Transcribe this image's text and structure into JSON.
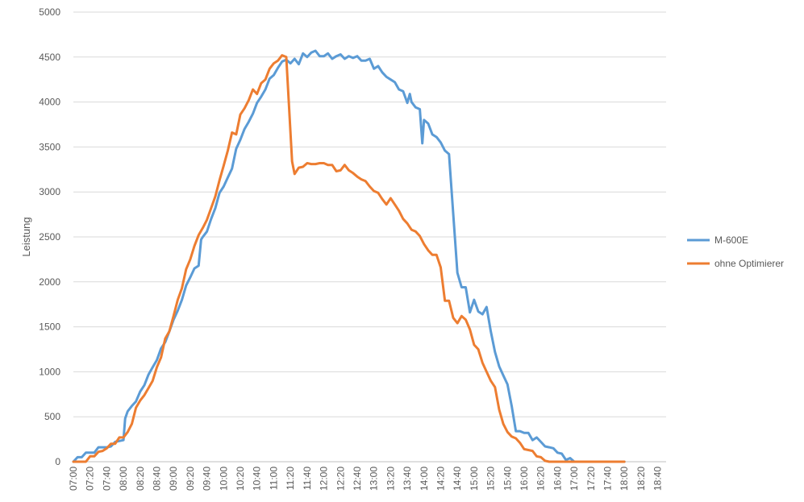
{
  "chart_data": {
    "type": "line",
    "title": "",
    "xlabel": "",
    "ylabel": "Leistung",
    "ylim": [
      0,
      5000
    ],
    "y_ticks": [
      0,
      500,
      1000,
      1500,
      2000,
      2500,
      3000,
      3500,
      4000,
      4500,
      5000
    ],
    "grid": "horizontal",
    "legend_position": "right",
    "x_tick_labels": [
      "07:00",
      "07:20",
      "07:40",
      "08:00",
      "08:20",
      "08:40",
      "09:00",
      "09:20",
      "09:40",
      "10:00",
      "10:20",
      "10:40",
      "11:00",
      "11:20",
      "11:40",
      "12:00",
      "12:20",
      "12:40",
      "13:00",
      "13:20",
      "13:40",
      "14:00",
      "14:20",
      "14:40",
      "15:00",
      "15:20",
      "15:40",
      "16:00",
      "16:20",
      "16:40",
      "17:00",
      "17:20",
      "17:40",
      "18:00",
      "18:20",
      "18:40"
    ],
    "x_start": "07:00",
    "x_end": "18:50",
    "series": [
      {
        "name": "M-600E",
        "color": "#5b9bd5",
        "points": [
          [
            "07:00",
            0
          ],
          [
            "07:05",
            50
          ],
          [
            "07:10",
            50
          ],
          [
            "07:15",
            100
          ],
          [
            "07:20",
            100
          ],
          [
            "07:25",
            100
          ],
          [
            "07:30",
            160
          ],
          [
            "07:40",
            160
          ],
          [
            "07:45",
            170
          ],
          [
            "07:50",
            220
          ],
          [
            "07:55",
            230
          ],
          [
            "08:00",
            240
          ],
          [
            "08:02",
            480
          ],
          [
            "08:05",
            560
          ],
          [
            "08:10",
            620
          ],
          [
            "08:15",
            670
          ],
          [
            "08:20",
            780
          ],
          [
            "08:25",
            850
          ],
          [
            "08:30",
            970
          ],
          [
            "08:35",
            1050
          ],
          [
            "08:40",
            1130
          ],
          [
            "08:45",
            1260
          ],
          [
            "08:50",
            1330
          ],
          [
            "08:55",
            1450
          ],
          [
            "09:00",
            1580
          ],
          [
            "09:05",
            1680
          ],
          [
            "09:10",
            1800
          ],
          [
            "09:15",
            1960
          ],
          [
            "09:20",
            2050
          ],
          [
            "09:25",
            2150
          ],
          [
            "09:30",
            2180
          ],
          [
            "09:33",
            2470
          ],
          [
            "09:35",
            2500
          ],
          [
            "09:40",
            2560
          ],
          [
            "09:45",
            2700
          ],
          [
            "09:50",
            2820
          ],
          [
            "09:55",
            2990
          ],
          [
            "10:00",
            3060
          ],
          [
            "10:05",
            3160
          ],
          [
            "10:10",
            3260
          ],
          [
            "10:15",
            3480
          ],
          [
            "10:20",
            3580
          ],
          [
            "10:25",
            3700
          ],
          [
            "10:30",
            3780
          ],
          [
            "10:35",
            3870
          ],
          [
            "10:40",
            3990
          ],
          [
            "10:45",
            4060
          ],
          [
            "10:50",
            4140
          ],
          [
            "10:55",
            4260
          ],
          [
            "11:00",
            4300
          ],
          [
            "11:05",
            4380
          ],
          [
            "11:10",
            4450
          ],
          [
            "11:15",
            4470
          ],
          [
            "11:20",
            4430
          ],
          [
            "11:25",
            4480
          ],
          [
            "11:30",
            4420
          ],
          [
            "11:35",
            4540
          ],
          [
            "11:40",
            4500
          ],
          [
            "11:45",
            4550
          ],
          [
            "11:50",
            4570
          ],
          [
            "11:55",
            4510
          ],
          [
            "12:00",
            4510
          ],
          [
            "12:05",
            4540
          ],
          [
            "12:10",
            4480
          ],
          [
            "12:15",
            4510
          ],
          [
            "12:20",
            4530
          ],
          [
            "12:25",
            4480
          ],
          [
            "12:30",
            4510
          ],
          [
            "12:35",
            4490
          ],
          [
            "12:40",
            4510
          ],
          [
            "12:45",
            4460
          ],
          [
            "12:50",
            4460
          ],
          [
            "12:55",
            4480
          ],
          [
            "13:00",
            4370
          ],
          [
            "13:05",
            4400
          ],
          [
            "13:10",
            4330
          ],
          [
            "13:15",
            4280
          ],
          [
            "13:20",
            4250
          ],
          [
            "13:25",
            4220
          ],
          [
            "13:30",
            4140
          ],
          [
            "13:35",
            4120
          ],
          [
            "13:40",
            3990
          ],
          [
            "13:43",
            4090
          ],
          [
            "13:45",
            4000
          ],
          [
            "13:50",
            3940
          ],
          [
            "13:55",
            3920
          ],
          [
            "13:58",
            3540
          ],
          [
            "14:00",
            3800
          ],
          [
            "14:05",
            3760
          ],
          [
            "14:10",
            3640
          ],
          [
            "14:15",
            3610
          ],
          [
            "14:20",
            3550
          ],
          [
            "14:25",
            3460
          ],
          [
            "14:30",
            3420
          ],
          [
            "14:35",
            2760
          ],
          [
            "14:40",
            2100
          ],
          [
            "14:45",
            1940
          ],
          [
            "14:50",
            1940
          ],
          [
            "14:55",
            1660
          ],
          [
            "15:00",
            1800
          ],
          [
            "15:05",
            1670
          ],
          [
            "15:10",
            1640
          ],
          [
            "15:15",
            1720
          ],
          [
            "15:20",
            1450
          ],
          [
            "15:25",
            1220
          ],
          [
            "15:30",
            1060
          ],
          [
            "15:35",
            960
          ],
          [
            "15:40",
            860
          ],
          [
            "15:45",
            620
          ],
          [
            "15:50",
            340
          ],
          [
            "15:55",
            340
          ],
          [
            "16:00",
            320
          ],
          [
            "16:05",
            320
          ],
          [
            "16:10",
            240
          ],
          [
            "16:15",
            270
          ],
          [
            "16:20",
            220
          ],
          [
            "16:25",
            170
          ],
          [
            "16:30",
            160
          ],
          [
            "16:35",
            150
          ],
          [
            "16:40",
            100
          ],
          [
            "16:45",
            90
          ],
          [
            "16:50",
            20
          ],
          [
            "16:55",
            40
          ],
          [
            "17:00",
            0
          ],
          [
            "17:20",
            0
          ],
          [
            "17:40",
            0
          ],
          [
            "18:00",
            0
          ]
        ]
      },
      {
        "name": "ohne Optimierer",
        "color": "#ed7d31",
        "points": [
          [
            "07:00",
            0
          ],
          [
            "07:10",
            0
          ],
          [
            "07:15",
            0
          ],
          [
            "07:20",
            60
          ],
          [
            "07:25",
            60
          ],
          [
            "07:30",
            110
          ],
          [
            "07:35",
            120
          ],
          [
            "07:40",
            150
          ],
          [
            "07:45",
            200
          ],
          [
            "07:50",
            200
          ],
          [
            "07:55",
            270
          ],
          [
            "08:00",
            270
          ],
          [
            "08:05",
            330
          ],
          [
            "08:10",
            420
          ],
          [
            "08:15",
            600
          ],
          [
            "08:20",
            680
          ],
          [
            "08:25",
            740
          ],
          [
            "08:30",
            820
          ],
          [
            "08:35",
            900
          ],
          [
            "08:40",
            1050
          ],
          [
            "08:45",
            1160
          ],
          [
            "08:50",
            1370
          ],
          [
            "08:55",
            1450
          ],
          [
            "09:00",
            1620
          ],
          [
            "09:05",
            1800
          ],
          [
            "09:10",
            1930
          ],
          [
            "09:15",
            2140
          ],
          [
            "09:20",
            2250
          ],
          [
            "09:25",
            2400
          ],
          [
            "09:30",
            2520
          ],
          [
            "09:35",
            2600
          ],
          [
            "09:40",
            2690
          ],
          [
            "09:45",
            2820
          ],
          [
            "09:50",
            2950
          ],
          [
            "09:55",
            3130
          ],
          [
            "10:00",
            3290
          ],
          [
            "10:05",
            3460
          ],
          [
            "10:10",
            3660
          ],
          [
            "10:15",
            3640
          ],
          [
            "10:20",
            3860
          ],
          [
            "10:25",
            3930
          ],
          [
            "10:30",
            4020
          ],
          [
            "10:35",
            4140
          ],
          [
            "10:40",
            4090
          ],
          [
            "10:45",
            4210
          ],
          [
            "10:50",
            4250
          ],
          [
            "10:55",
            4370
          ],
          [
            "11:00",
            4430
          ],
          [
            "11:05",
            4460
          ],
          [
            "11:10",
            4520
          ],
          [
            "11:15",
            4500
          ],
          [
            "11:18",
            4000
          ],
          [
            "11:22",
            3340
          ],
          [
            "11:25",
            3200
          ],
          [
            "11:30",
            3270
          ],
          [
            "11:35",
            3280
          ],
          [
            "11:40",
            3320
          ],
          [
            "11:45",
            3310
          ],
          [
            "11:50",
            3310
          ],
          [
            "11:55",
            3320
          ],
          [
            "12:00",
            3320
          ],
          [
            "12:05",
            3300
          ],
          [
            "12:10",
            3300
          ],
          [
            "12:15",
            3230
          ],
          [
            "12:20",
            3240
          ],
          [
            "12:25",
            3300
          ],
          [
            "12:30",
            3240
          ],
          [
            "12:35",
            3210
          ],
          [
            "12:40",
            3170
          ],
          [
            "12:45",
            3140
          ],
          [
            "12:50",
            3120
          ],
          [
            "12:55",
            3060
          ],
          [
            "13:00",
            3010
          ],
          [
            "13:05",
            2990
          ],
          [
            "13:10",
            2920
          ],
          [
            "13:15",
            2860
          ],
          [
            "13:20",
            2930
          ],
          [
            "13:25",
            2860
          ],
          [
            "13:30",
            2790
          ],
          [
            "13:35",
            2700
          ],
          [
            "13:40",
            2650
          ],
          [
            "13:45",
            2580
          ],
          [
            "13:50",
            2560
          ],
          [
            "13:55",
            2510
          ],
          [
            "14:00",
            2420
          ],
          [
            "14:05",
            2350
          ],
          [
            "14:10",
            2300
          ],
          [
            "14:15",
            2300
          ],
          [
            "14:20",
            2160
          ],
          [
            "14:25",
            1790
          ],
          [
            "14:30",
            1790
          ],
          [
            "14:35",
            1600
          ],
          [
            "14:40",
            1540
          ],
          [
            "14:45",
            1620
          ],
          [
            "14:50",
            1580
          ],
          [
            "14:55",
            1470
          ],
          [
            "15:00",
            1300
          ],
          [
            "15:05",
            1250
          ],
          [
            "15:10",
            1100
          ],
          [
            "15:15",
            1000
          ],
          [
            "15:20",
            900
          ],
          [
            "15:25",
            830
          ],
          [
            "15:30",
            580
          ],
          [
            "15:35",
            420
          ],
          [
            "15:40",
            330
          ],
          [
            "15:45",
            280
          ],
          [
            "15:50",
            260
          ],
          [
            "15:55",
            210
          ],
          [
            "16:00",
            140
          ],
          [
            "16:05",
            130
          ],
          [
            "16:10",
            120
          ],
          [
            "16:15",
            60
          ],
          [
            "16:20",
            50
          ],
          [
            "16:25",
            10
          ],
          [
            "16:30",
            0
          ],
          [
            "16:40",
            0
          ],
          [
            "17:00",
            0
          ],
          [
            "17:20",
            0
          ],
          [
            "17:40",
            0
          ],
          [
            "18:00",
            0
          ]
        ]
      }
    ]
  }
}
